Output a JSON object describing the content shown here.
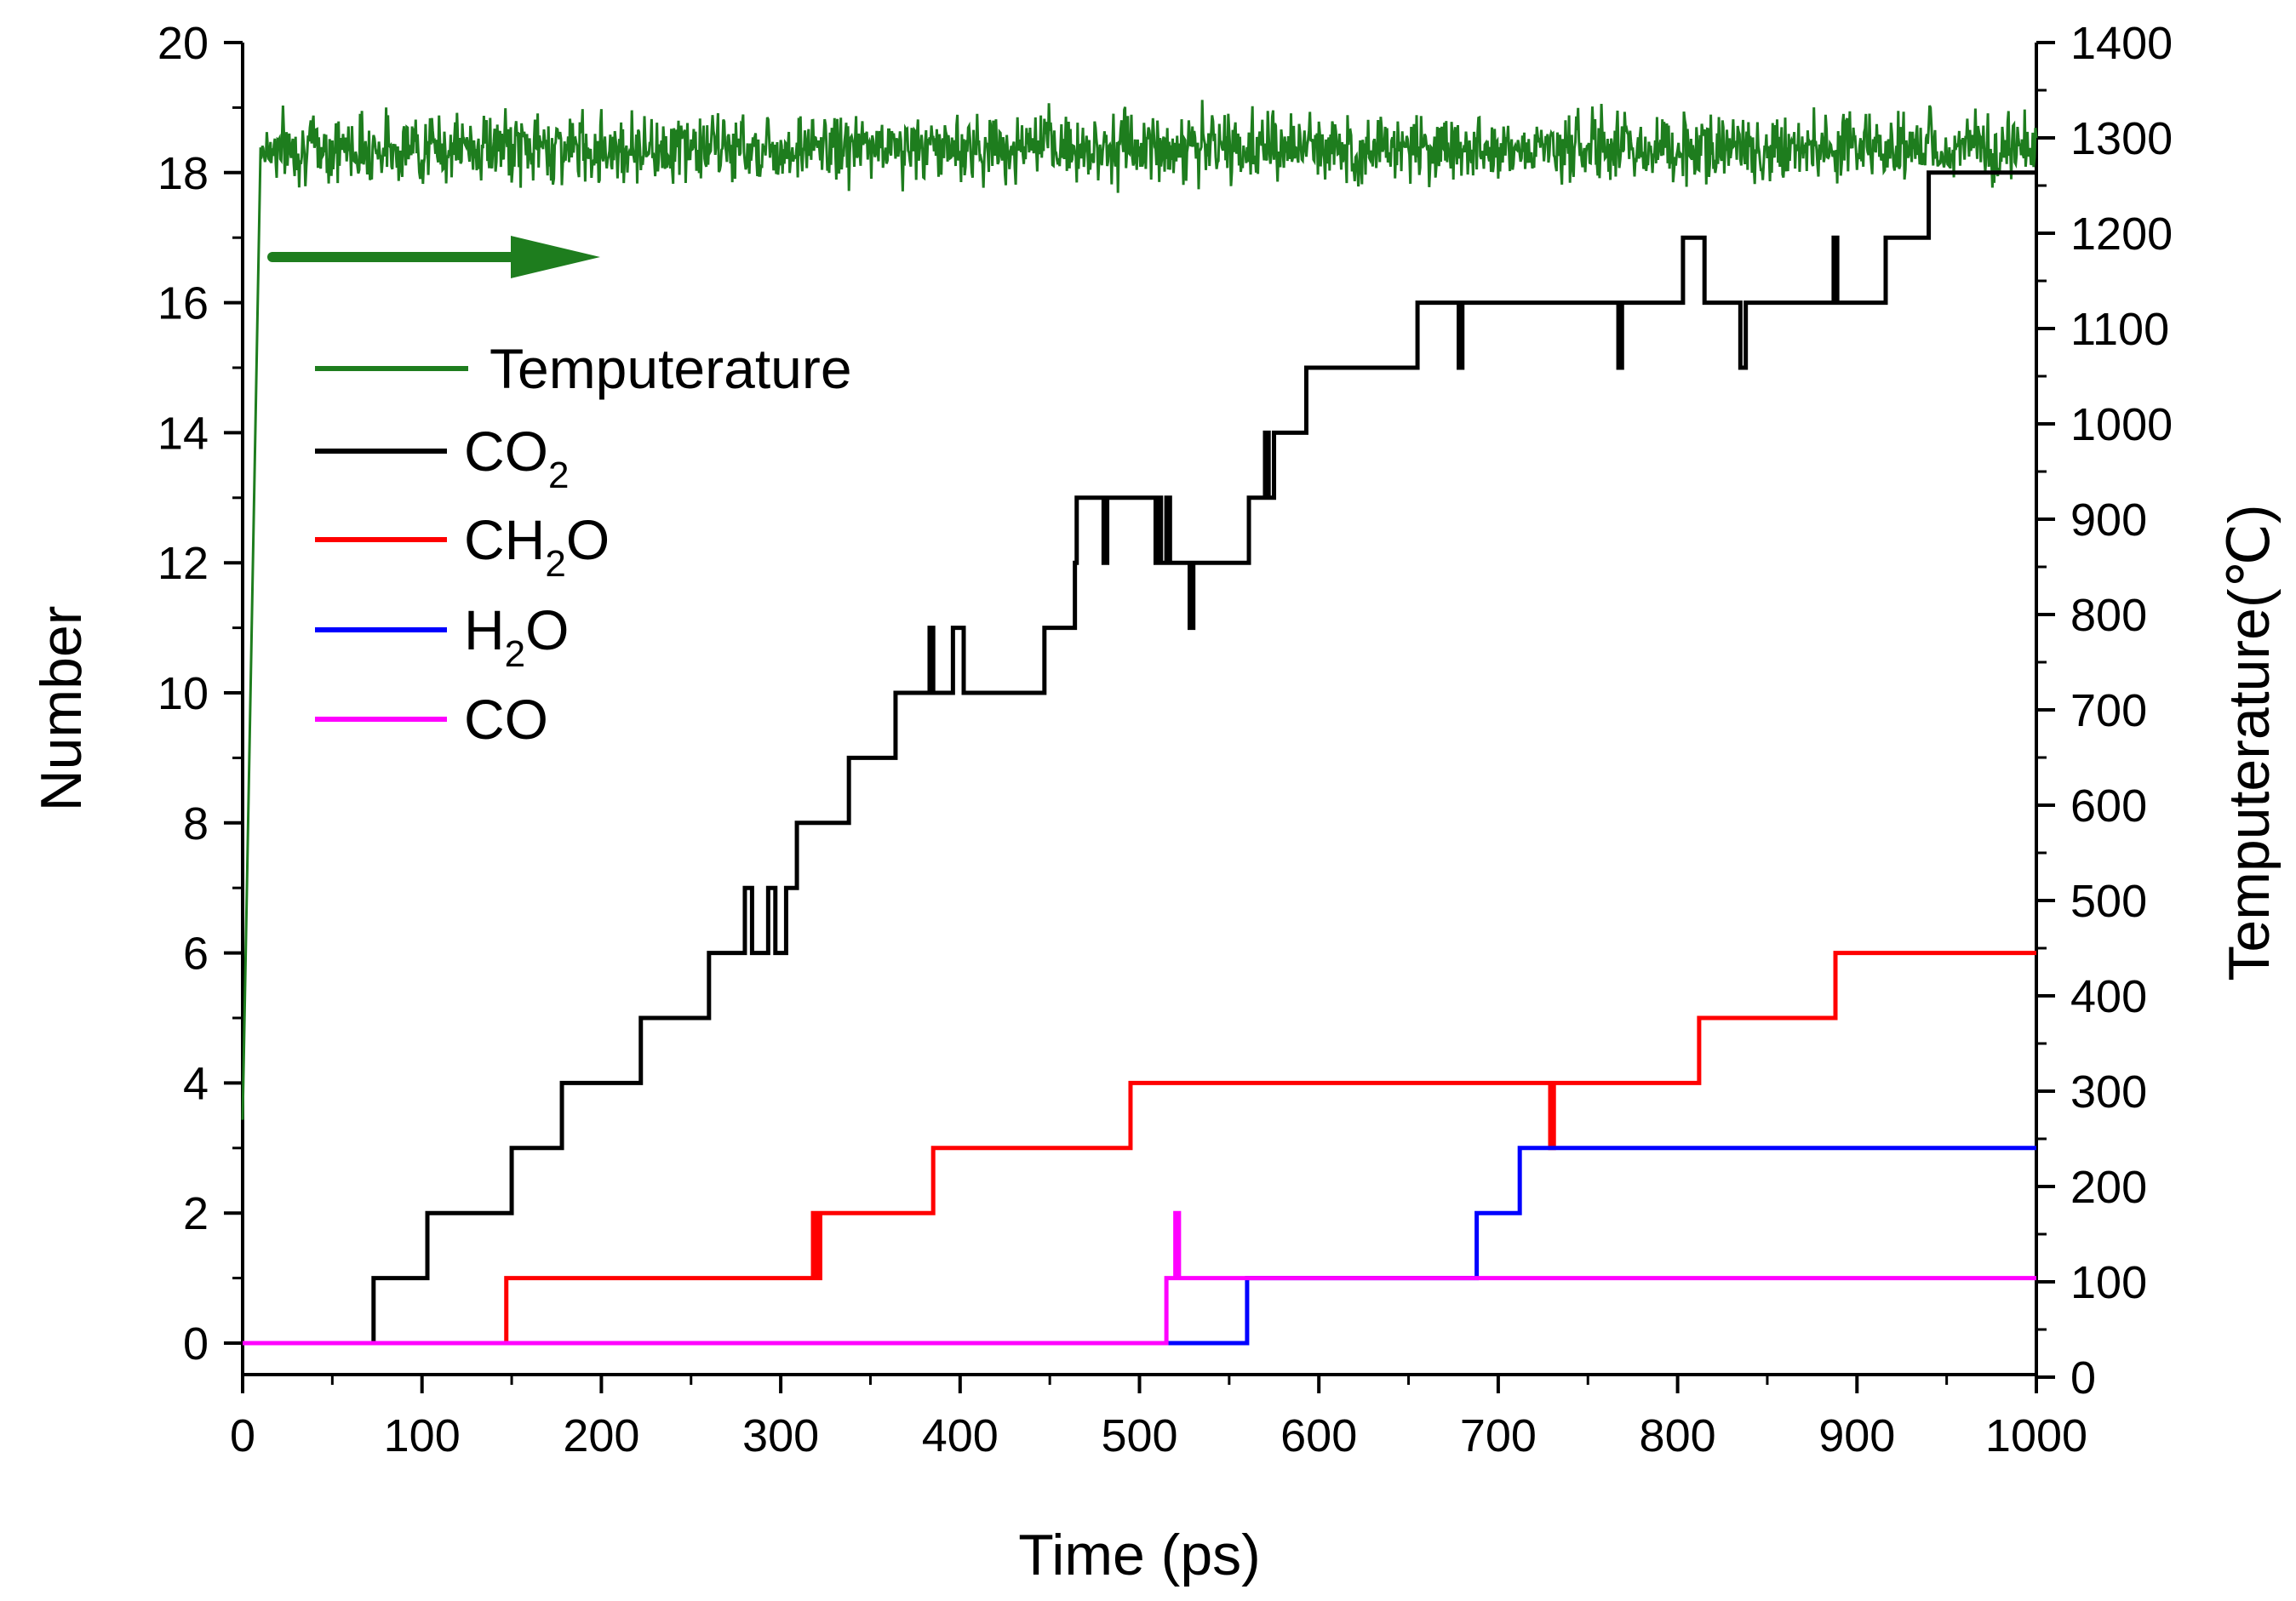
{
  "chart_data": {
    "type": "line",
    "title": "",
    "xlabel": "Time (ps)",
    "ylabel": "Number",
    "y2label": "Temputerature(℃)",
    "xlim": [
      0,
      1000
    ],
    "ylim": [
      0,
      20
    ],
    "y2lim": [
      0,
      1400
    ],
    "x_ticks": [
      "0",
      "100",
      "200",
      "300",
      "400",
      "500",
      "600",
      "700",
      "800",
      "900",
      "1000"
    ],
    "y_ticks": [
      "0",
      "2",
      "4",
      "6",
      "8",
      "10",
      "12",
      "14",
      "16",
      "18",
      "20"
    ],
    "y2_ticks": [
      "0",
      "100",
      "200",
      "300",
      "400",
      "500",
      "600",
      "700",
      "800",
      "900",
      "1000",
      "1100",
      "1200",
      "1300",
      "1400"
    ],
    "legend_position": "upper-left",
    "annotation": "arrow pointing right indicating temperature uses right axis",
    "series": [
      {
        "name": "Temputerature",
        "axis": "right",
        "color": "#1e7d1e",
        "ramp": [
          [
            0,
            270
          ],
          [
            10,
            1290
          ]
        ],
        "plateau_mean": 1290,
        "plateau_noise_amplitude": 25,
        "plateau_range": [
          10,
          1000
        ]
      },
      {
        "name": "CO",
        "sub": "2",
        "axis": "left",
        "color": "#000000",
        "steps": [
          [
            0,
            0
          ],
          [
            73,
            1
          ],
          [
            103,
            2
          ],
          [
            150,
            3
          ],
          [
            178,
            4
          ],
          [
            222,
            5
          ],
          [
            260,
            6
          ],
          [
            280,
            7
          ],
          [
            284,
            6
          ],
          [
            293,
            7
          ],
          [
            297,
            6
          ],
          [
            303,
            7
          ],
          [
            309,
            8
          ],
          [
            338,
            9
          ],
          [
            364,
            10
          ],
          [
            383,
            11
          ],
          [
            385,
            10
          ],
          [
            396,
            11
          ],
          [
            402,
            10
          ],
          [
            447,
            11
          ],
          [
            464,
            12
          ],
          [
            465,
            13
          ],
          [
            480,
            12
          ],
          [
            482,
            13
          ],
          [
            509,
            12
          ],
          [
            510,
            13
          ],
          [
            512,
            12
          ],
          [
            515,
            13
          ],
          [
            517,
            12
          ],
          [
            528,
            11
          ],
          [
            530,
            12
          ],
          [
            561,
            13
          ],
          [
            570,
            14
          ],
          [
            572,
            13
          ],
          [
            575,
            14
          ],
          [
            593,
            15
          ],
          [
            655,
            16
          ],
          [
            678,
            15
          ],
          [
            680,
            16
          ],
          [
            767,
            15
          ],
          [
            769,
            16
          ],
          [
            803,
            17
          ],
          [
            815,
            16
          ],
          [
            835,
            15
          ],
          [
            838,
            16
          ],
          [
            887,
            17
          ],
          [
            889,
            16
          ],
          [
            916,
            17
          ],
          [
            940,
            18
          ],
          [
            1000,
            18
          ]
        ]
      },
      {
        "name": "CH",
        "sub": "2",
        "suffix": "O",
        "axis": "left",
        "color": "#ff0000",
        "steps": [
          [
            0,
            0
          ],
          [
            147,
            1
          ],
          [
            318,
            2
          ],
          [
            320,
            1
          ],
          [
            322,
            2
          ],
          [
            385,
            3
          ],
          [
            495,
            4
          ],
          [
            729,
            3
          ],
          [
            731,
            4
          ],
          [
            812,
            5
          ],
          [
            888,
            6
          ],
          [
            1000,
            6
          ]
        ]
      },
      {
        "name": "H",
        "sub": "2",
        "suffix": "O",
        "axis": "left",
        "color": "#0000ff",
        "steps": [
          [
            0,
            0
          ],
          [
            560,
            1
          ],
          [
            688,
            2
          ],
          [
            712,
            3
          ],
          [
            1000,
            3
          ]
        ]
      },
      {
        "name": "CO",
        "sub": "",
        "axis": "left",
        "color": "#ff00ff",
        "steps": [
          [
            0,
            0
          ],
          [
            515,
            1
          ],
          [
            520,
            2
          ],
          [
            522,
            1
          ],
          [
            1000,
            1
          ]
        ]
      }
    ]
  }
}
